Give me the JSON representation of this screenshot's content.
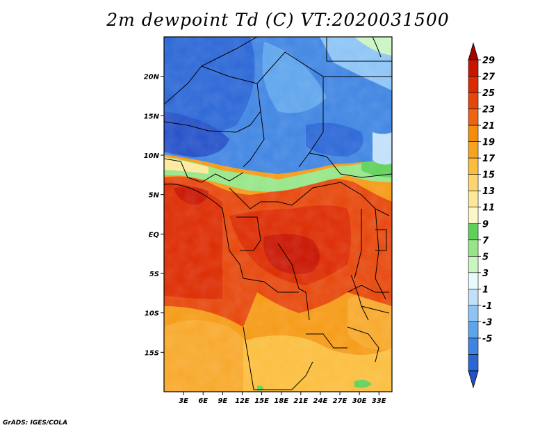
{
  "title": "2m dewpoint Td (C) VT:2020031500",
  "credit": "GrADS: IGES/COLA",
  "map": {
    "lon_labels": [
      "3E",
      "6E",
      "9E",
      "12E",
      "15E",
      "18E",
      "21E",
      "24E",
      "27E",
      "30E",
      "33E"
    ],
    "lon_values": [
      3,
      6,
      9,
      12,
      15,
      18,
      21,
      24,
      27,
      30,
      33
    ],
    "lat_labels": [
      "20N",
      "15N",
      "10N",
      "5N",
      "EQ",
      "5S",
      "10S",
      "15S"
    ],
    "lat_values": [
      20,
      15,
      10,
      5,
      0,
      -5,
      -10,
      -15
    ],
    "lon_range": [
      0,
      35
    ],
    "lat_range": [
      -20,
      25
    ]
  },
  "colorbar": {
    "labels": [
      "29",
      "27",
      "25",
      "23",
      "21",
      "19",
      "17",
      "15",
      "13",
      "11",
      "9",
      "7",
      "5",
      "3",
      "1",
      "-1",
      "-3",
      "-5"
    ],
    "colors": [
      "#a50000",
      "#c81400",
      "#dc2a00",
      "#e6460a",
      "#ec6414",
      "#f58c0a",
      "#f8a31e",
      "#fbbd3c",
      "#fcd56e",
      "#fde89a",
      "#fbf7c8",
      "#5fd15a",
      "#96e687",
      "#c8f5c0",
      "#e8fbfc",
      "#c0e0fa",
      "#8cc4f5",
      "#5ea4ec",
      "#3e84e2",
      "#2a66d6",
      "#2450c8"
    ]
  }
}
